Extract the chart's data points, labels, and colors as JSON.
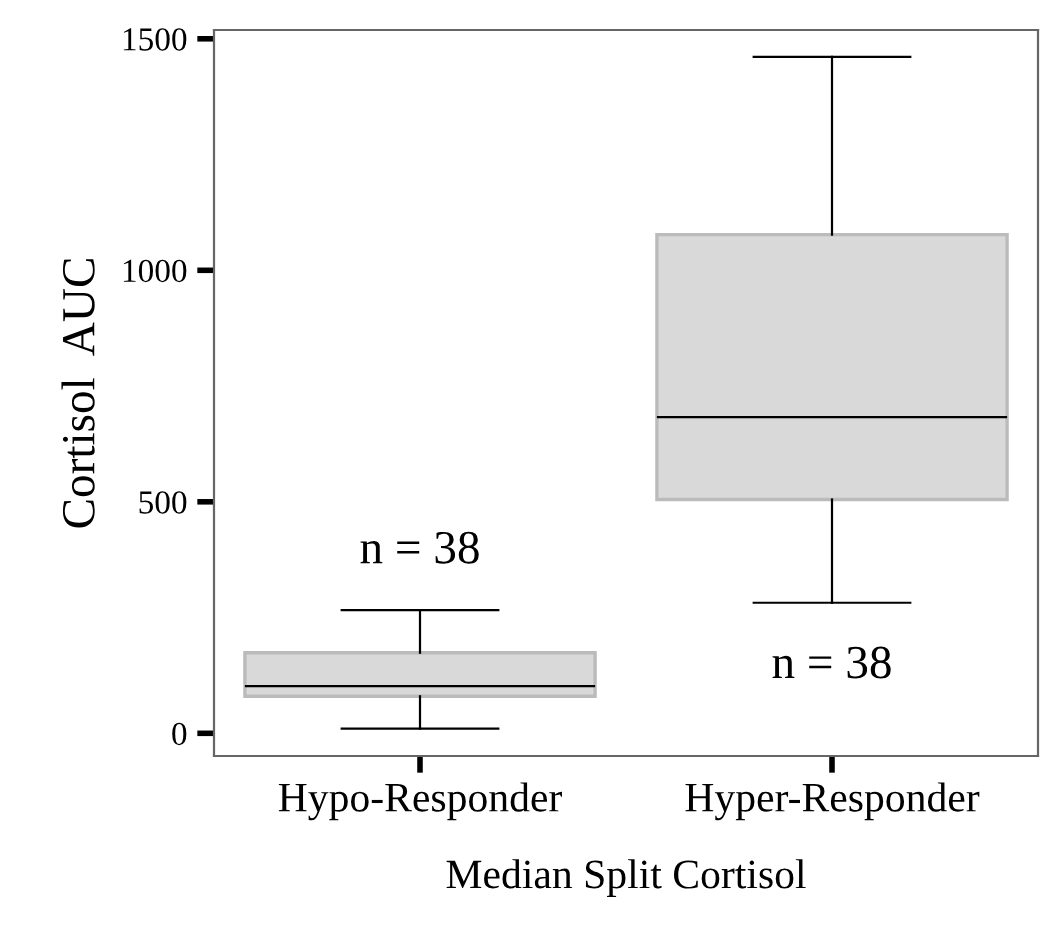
{
  "chart_data": {
    "type": "box",
    "xlabel": "Median Split Cortisol",
    "ylabel": "Cortisol  AUC",
    "categories": [
      "Hypo-Responder",
      "Hyper-Responder"
    ],
    "boxes": [
      {
        "low": 10,
        "q1": 80,
        "median": 102,
        "q3": 174,
        "high": 266
      },
      {
        "low": 282,
        "q1": 505,
        "median": 683,
        "q3": 1077,
        "high": 1461
      }
    ],
    "color": "#d9d9d9",
    "ylim": [
      -49,
      1519
    ],
    "yticks": [
      0,
      500,
      1000,
      1500
    ],
    "grid": false,
    "annotations": [
      "n = 38",
      "n = 38"
    ]
  }
}
